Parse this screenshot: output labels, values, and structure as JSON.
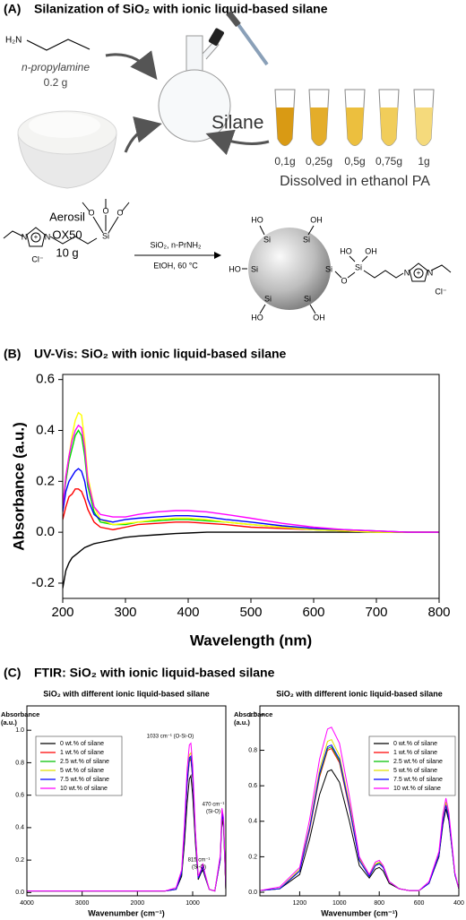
{
  "panel_a": {
    "label": "(A)",
    "title": "Silanization of SiO₂ with ionic liquid-based silane",
    "amine": {
      "formula": "H₂N",
      "name": "n-propylamine",
      "mass": "0.2 g"
    },
    "silica": {
      "name": "Aerosil",
      "grade": "OX50",
      "mass": "10 g"
    },
    "silane": "Silane",
    "tube_masses": [
      "0,1g",
      "0,25g",
      "0,5g",
      "0,75g",
      "1g"
    ],
    "solvent": "Dissolved in ethanol PA",
    "conditions": [
      "SiO₂, n-PrNH₂",
      "EtOH, 60 °C"
    ],
    "reactant_atoms": [
      "N",
      "N",
      "+",
      "Cl⁻",
      "Si",
      "O",
      "O",
      "O"
    ],
    "product_atoms": [
      "HO",
      "Si",
      "OH",
      "Si",
      "HO",
      "Si",
      "Si",
      "O",
      "Si",
      "HO",
      "OH",
      "Si",
      "HO",
      "Si",
      "OH",
      "N",
      "N",
      "+",
      "Cl⁻"
    ]
  },
  "panel_c": {
    "label": "(C)",
    "title": "FTIR: SiO₂ with ionic liquid-based silane"
  },
  "chart_data": [
    {
      "type": "line",
      "panel_label": "(B)",
      "title": "UV-Vis: SiO₂ with ionic liquid-based silane",
      "x_label": "Wavelength (nm)",
      "y_label": "Absorbance (a.u.)",
      "xlim": [
        200,
        800
      ],
      "ylim": [
        -0.26,
        0.62
      ],
      "xticks": [
        200,
        300,
        400,
        500,
        600,
        700,
        800
      ],
      "yticks": [
        0.6,
        0.4,
        0.2,
        {
          "value": 0,
          "label": "0.0"
        },
        -0.2
      ],
      "grid": false,
      "x": [
        200,
        205,
        210,
        215,
        220,
        225,
        230,
        235,
        240,
        250,
        260,
        280,
        300,
        320,
        350,
        380,
        400,
        430,
        460,
        500,
        550,
        600,
        650,
        700,
        750,
        800
      ],
      "series": [
        {
          "color": "#000000",
          "values": [
            -0.22,
            -0.15,
            -0.12,
            -0.1,
            -0.09,
            -0.08,
            -0.07,
            -0.06,
            -0.055,
            -0.045,
            -0.04,
            -0.03,
            -0.02,
            -0.015,
            -0.01,
            -0.005,
            -0.003,
            0,
            0,
            0,
            0,
            0,
            0,
            0,
            0,
            0
          ]
        },
        {
          "color": "#ff0000",
          "values": [
            0.05,
            0.1,
            0.14,
            0.15,
            0.17,
            0.17,
            0.16,
            0.13,
            0.09,
            0.04,
            0.02,
            0.01,
            0.02,
            0.03,
            0.035,
            0.04,
            0.04,
            0.035,
            0.03,
            0.02,
            0.015,
            0.01,
            0.005,
            0,
            0,
            0
          ]
        },
        {
          "color": "#00dd00",
          "values": [
            0.1,
            0.2,
            0.28,
            0.33,
            0.38,
            0.4,
            0.38,
            0.3,
            0.18,
            0.08,
            0.04,
            0.03,
            0.03,
            0.04,
            0.045,
            0.05,
            0.05,
            0.045,
            0.04,
            0.03,
            0.02,
            0.01,
            0.005,
            0,
            0,
            0
          ]
        },
        {
          "color": "#ffff00",
          "values": [
            0.1,
            0.22,
            0.3,
            0.38,
            0.44,
            0.47,
            0.46,
            0.36,
            0.22,
            0.1,
            0.05,
            0.03,
            0.035,
            0.04,
            0.05,
            0.055,
            0.055,
            0.05,
            0.04,
            0.03,
            0.02,
            0.01,
            0.005,
            0,
            0,
            0
          ]
        },
        {
          "color": "#0000ff",
          "values": [
            0.08,
            0.16,
            0.2,
            0.22,
            0.24,
            0.25,
            0.24,
            0.2,
            0.13,
            0.07,
            0.05,
            0.04,
            0.05,
            0.055,
            0.06,
            0.065,
            0.065,
            0.06,
            0.05,
            0.04,
            0.025,
            0.015,
            0.01,
            0.005,
            0,
            0
          ]
        },
        {
          "color": "#ff00ff",
          "values": [
            0.1,
            0.22,
            0.3,
            0.36,
            0.4,
            0.42,
            0.41,
            0.33,
            0.2,
            0.1,
            0.07,
            0.06,
            0.06,
            0.07,
            0.08,
            0.085,
            0.085,
            0.08,
            0.07,
            0.055,
            0.035,
            0.02,
            0.01,
            0.005,
            0,
            0
          ]
        }
      ]
    },
    {
      "type": "line",
      "title": "SiO₂ with different ionic liquid-based silane",
      "x_label": "Wavenumber (cm⁻¹)",
      "y_label": "Absorbance (a.u.)",
      "xlim": [
        4000,
        400
      ],
      "ylim": [
        -0.02,
        1.15
      ],
      "xticks": [
        4000,
        3000,
        2000,
        1000
      ],
      "yticks": [
        {
          "value": 0,
          "label": "0.0"
        },
        0.2,
        0.4,
        0.6,
        0.8,
        {
          "value": 1,
          "label": "1.0"
        }
      ],
      "grid": false,
      "legend": "upper left",
      "annotations": [
        "1033 cm⁻¹ (O-Si-O)",
        "815 cm⁻¹",
        "(Si-O)",
        "470 cm⁻¹",
        "(Si-O)"
      ],
      "x": [
        4000,
        3500,
        3000,
        2500,
        2000,
        1500,
        1300,
        1200,
        1150,
        1100,
        1060,
        1033,
        1000,
        950,
        900,
        850,
        815,
        780,
        700,
        600,
        500,
        470,
        440,
        400
      ],
      "series": [
        {
          "name": "0 wt.% of silane",
          "color": "#000000",
          "values": [
            0.01,
            0.01,
            0.01,
            0.01,
            0.01,
            0.01,
            0.02,
            0.1,
            0.3,
            0.55,
            0.7,
            0.72,
            0.6,
            0.3,
            0.08,
            0.12,
            0.14,
            0.1,
            0.02,
            0.01,
            0.2,
            0.45,
            0.4,
            0.02
          ]
        },
        {
          "name": "1 wt.% of silane",
          "color": "#ff0000",
          "values": [
            0.01,
            0.01,
            0.01,
            0.01,
            0.01,
            0.01,
            0.02,
            0.12,
            0.36,
            0.66,
            0.81,
            0.82,
            0.7,
            0.34,
            0.09,
            0.13,
            0.16,
            0.11,
            0.02,
            0.01,
            0.21,
            0.48,
            0.42,
            0.02
          ]
        },
        {
          "name": "2.5 wt.% of silane",
          "color": "#00c000",
          "values": [
            0.01,
            0.01,
            0.01,
            0.01,
            0.01,
            0.01,
            0.02,
            0.12,
            0.37,
            0.67,
            0.82,
            0.83,
            0.71,
            0.35,
            0.09,
            0.13,
            0.16,
            0.11,
            0.02,
            0.01,
            0.21,
            0.49,
            0.43,
            0.02
          ]
        },
        {
          "name": "5 wt.% of silane",
          "color": "#e0e000",
          "values": [
            0.01,
            0.01,
            0.01,
            0.01,
            0.01,
            0.01,
            0.02,
            0.13,
            0.38,
            0.7,
            0.85,
            0.86,
            0.74,
            0.36,
            0.1,
            0.14,
            0.17,
            0.12,
            0.02,
            0.01,
            0.22,
            0.5,
            0.44,
            0.02
          ]
        },
        {
          "name": "7.5 wt.% of silane",
          "color": "#0000ff",
          "values": [
            0.01,
            0.01,
            0.01,
            0.01,
            0.01,
            0.01,
            0.02,
            0.12,
            0.37,
            0.68,
            0.83,
            0.84,
            0.72,
            0.35,
            0.09,
            0.13,
            0.16,
            0.11,
            0.02,
            0.01,
            0.21,
            0.49,
            0.43,
            0.02
          ]
        },
        {
          "name": "10 wt.% of silane",
          "color": "#ff00ff",
          "values": [
            0.01,
            0.01,
            0.01,
            0.01,
            0.01,
            0.01,
            0.03,
            0.14,
            0.42,
            0.76,
            0.91,
            0.92,
            0.79,
            0.38,
            0.1,
            0.14,
            0.18,
            0.12,
            0.02,
            0.01,
            0.23,
            0.52,
            0.46,
            0.02
          ]
        }
      ]
    },
    {
      "type": "line",
      "title": "SiO₂ with different ionic liquid-based silane",
      "x_label": "Wavenumber (cm⁻¹)",
      "y_label": "Absorbance (a.u.)",
      "xlim": [
        1400,
        400
      ],
      "ylim": [
        -0.02,
        1.05
      ],
      "xticks": [
        1200,
        1000,
        800,
        600,
        400
      ],
      "yticks": [
        {
          "value": 0,
          "label": "0.0"
        },
        0.2,
        0.4,
        0.6,
        0.8,
        {
          "value": 1,
          "label": "1.0"
        }
      ],
      "grid": false,
      "legend": "upper right",
      "x": [
        1400,
        1300,
        1200,
        1150,
        1100,
        1060,
        1040,
        1000,
        950,
        900,
        850,
        820,
        800,
        780,
        750,
        700,
        650,
        600,
        550,
        500,
        480,
        465,
        450,
        420,
        400
      ],
      "series": [
        {
          "name": "0 wt.% of silane",
          "color": "#000000",
          "values": [
            0.01,
            0.02,
            0.1,
            0.3,
            0.55,
            0.68,
            0.69,
            0.62,
            0.4,
            0.15,
            0.08,
            0.13,
            0.14,
            0.12,
            0.05,
            0.02,
            0.01,
            0.01,
            0.05,
            0.2,
            0.38,
            0.47,
            0.4,
            0.1,
            0.02
          ]
        },
        {
          "name": "1 wt.% of silane",
          "color": "#ff0000",
          "values": [
            0.01,
            0.02,
            0.12,
            0.35,
            0.65,
            0.8,
            0.81,
            0.73,
            0.47,
            0.18,
            0.09,
            0.15,
            0.16,
            0.14,
            0.06,
            0.02,
            0.01,
            0.01,
            0.05,
            0.21,
            0.4,
            0.49,
            0.42,
            0.1,
            0.02
          ]
        },
        {
          "name": "2.5 wt.% of silane",
          "color": "#00c000",
          "values": [
            0.01,
            0.02,
            0.12,
            0.36,
            0.66,
            0.81,
            0.82,
            0.74,
            0.48,
            0.18,
            0.09,
            0.15,
            0.17,
            0.14,
            0.06,
            0.02,
            0.01,
            0.01,
            0.05,
            0.21,
            0.41,
            0.5,
            0.42,
            0.1,
            0.02
          ]
        },
        {
          "name": "5 wt.% of silane",
          "color": "#e0e000",
          "values": [
            0.01,
            0.02,
            0.13,
            0.37,
            0.69,
            0.85,
            0.86,
            0.77,
            0.5,
            0.19,
            0.1,
            0.16,
            0.17,
            0.15,
            0.06,
            0.02,
            0.01,
            0.01,
            0.05,
            0.22,
            0.42,
            0.51,
            0.43,
            0.1,
            0.02
          ]
        },
        {
          "name": "7.5 wt.% of silane",
          "color": "#0000ff",
          "values": [
            0.01,
            0.02,
            0.12,
            0.36,
            0.67,
            0.82,
            0.83,
            0.75,
            0.48,
            0.18,
            0.09,
            0.15,
            0.16,
            0.14,
            0.06,
            0.02,
            0.01,
            0.01,
            0.05,
            0.21,
            0.4,
            0.49,
            0.42,
            0.1,
            0.02
          ]
        },
        {
          "name": "10 wt.% of silane",
          "color": "#ff00ff",
          "values": [
            0.01,
            0.03,
            0.14,
            0.41,
            0.75,
            0.92,
            0.93,
            0.84,
            0.54,
            0.2,
            0.1,
            0.17,
            0.18,
            0.15,
            0.06,
            0.02,
            0.01,
            0.01,
            0.06,
            0.23,
            0.44,
            0.53,
            0.45,
            0.11,
            0.02
          ]
        }
      ]
    }
  ]
}
